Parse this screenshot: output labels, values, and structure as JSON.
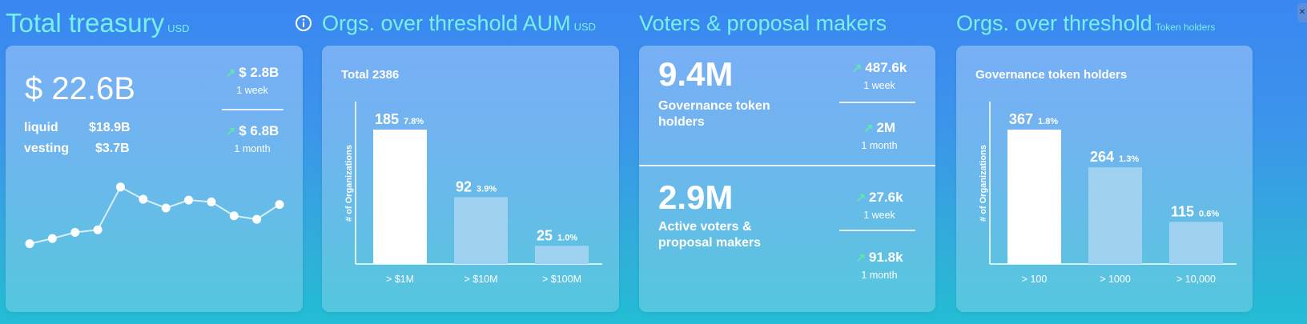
{
  "treasury": {
    "title": "Total treasury",
    "unit": "USD",
    "total": "$ 22.6B",
    "liquid_label": "liquid",
    "liquid_value": "$18.9B",
    "vesting_label": "vesting",
    "vesting_value": "$3.7B",
    "change_week": "$ 2.8B",
    "change_week_period": "1 week",
    "change_month": "$ 6.8B",
    "change_month_period": "1 month",
    "sparkline": [
      0.15,
      0.21,
      0.28,
      0.31,
      0.8,
      0.66,
      0.56,
      0.65,
      0.63,
      0.47,
      0.43,
      0.6
    ]
  },
  "aum": {
    "title": "Orgs. over threshold AUM",
    "unit": "USD",
    "chart_data": {
      "type": "bar",
      "title": "Total 2386",
      "ylabel": "# of Organizations",
      "categories": [
        "> $1M",
        "> $10M",
        "> $100M"
      ],
      "values": [
        185,
        92,
        25
      ],
      "percents": [
        "7.8%",
        "3.9%",
        "1.0%"
      ],
      "ylim": [
        0,
        185
      ]
    }
  },
  "voters": {
    "title": "Voters & proposal makers",
    "holders_value": "9.4M",
    "holders_label_line1": "Governance token",
    "holders_label_line2": "holders",
    "holders_week": "487.6k",
    "holders_week_period": "1 week",
    "holders_month": "2M",
    "holders_month_period": "1 month",
    "active_value": "2.9M",
    "active_label_line1": "Active voters &",
    "active_label_line2": "proposal makers",
    "active_week": "27.6k",
    "active_week_period": "1 week",
    "active_month": "91.8k",
    "active_month_period": "1 month"
  },
  "tokenholders": {
    "title": "Orgs. over threshold",
    "unit": "Token holders",
    "chart_data": {
      "type": "bar",
      "title": "Governance token holders",
      "ylabel": "# of Organizations",
      "categories": [
        "> 100",
        "> 1000",
        "> 10,000"
      ],
      "values": [
        367,
        264,
        115
      ],
      "percents": [
        "1.8%",
        "1.3%",
        "0.6%"
      ],
      "ylim": [
        0,
        367
      ]
    }
  },
  "colors": {
    "title": "#78f0ea",
    "arrow": "#5fe8a8",
    "bar_primary": "#ffffff",
    "bar_secondary": "#9fd2f1"
  },
  "corner_button_label": "✕"
}
